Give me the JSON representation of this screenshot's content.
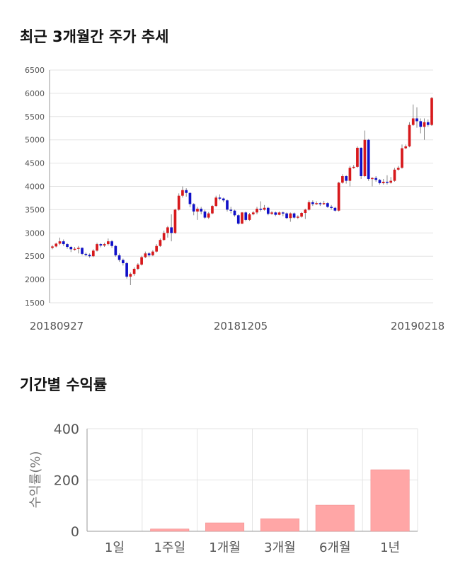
{
  "sections": {
    "price_title": "최근 3개월간 주가 추세",
    "returns_title": "기간별 수익률"
  },
  "colors": {
    "up": "#d7191c",
    "down": "#1010c8",
    "bar": "#ffa6a6",
    "grid": "#e3e3e3",
    "axis": "#999999"
  },
  "chart_data": [
    {
      "type": "candlestick",
      "title": "최근 3개월간 주가 추세",
      "ylim": [
        1500,
        6500
      ],
      "yticks": [
        1500,
        2000,
        2500,
        3000,
        3500,
        4000,
        4500,
        5000,
        5500,
        6000,
        6500
      ],
      "date_labels": [
        "20180927",
        "20181205",
        "20190218"
      ],
      "candles": [
        [
          2680,
          2710,
          2650,
          2740
        ],
        [
          2710,
          2770,
          2690,
          2790
        ],
        [
          2770,
          2820,
          2740,
          2900
        ],
        [
          2820,
          2760,
          2720,
          2860
        ],
        [
          2760,
          2700,
          2660,
          2780
        ],
        [
          2700,
          2650,
          2590,
          2720
        ],
        [
          2650,
          2660,
          2620,
          2700
        ],
        [
          2660,
          2680,
          2560,
          2720
        ],
        [
          2680,
          2550,
          2520,
          2690
        ],
        [
          2550,
          2530,
          2500,
          2580
        ],
        [
          2530,
          2500,
          2470,
          2560
        ],
        [
          2500,
          2620,
          2480,
          2650
        ],
        [
          2620,
          2760,
          2600,
          2790
        ],
        [
          2760,
          2730,
          2690,
          2780
        ],
        [
          2730,
          2760,
          2700,
          2790
        ],
        [
          2760,
          2820,
          2730,
          2880
        ],
        [
          2820,
          2720,
          2680,
          2850
        ],
        [
          2720,
          2520,
          2490,
          2740
        ],
        [
          2520,
          2420,
          2380,
          2560
        ],
        [
          2420,
          2350,
          2300,
          2450
        ],
        [
          2350,
          2060,
          2020,
          2380
        ],
        [
          2060,
          2120,
          1880,
          2150
        ],
        [
          2120,
          2230,
          2080,
          2260
        ],
        [
          2230,
          2320,
          2200,
          2350
        ],
        [
          2320,
          2480,
          2300,
          2510
        ],
        [
          2480,
          2560,
          2460,
          2600
        ],
        [
          2560,
          2520,
          2480,
          2590
        ],
        [
          2520,
          2600,
          2500,
          2630
        ],
        [
          2600,
          2720,
          2580,
          2760
        ],
        [
          2720,
          2850,
          2700,
          2880
        ],
        [
          2850,
          3000,
          2830,
          3050
        ],
        [
          3000,
          3120,
          2900,
          3150
        ],
        [
          3120,
          3000,
          2820,
          3400
        ],
        [
          3000,
          3500,
          2980,
          3520
        ],
        [
          3500,
          3800,
          3480,
          3850
        ],
        [
          3800,
          3920,
          3760,
          4000
        ],
        [
          3920,
          3860,
          3780,
          3960
        ],
        [
          3860,
          3620,
          3550,
          3870
        ],
        [
          3620,
          3460,
          3380,
          3640
        ],
        [
          3460,
          3520,
          3280,
          3560
        ],
        [
          3520,
          3460,
          3400,
          3560
        ],
        [
          3460,
          3330,
          3300,
          3500
        ],
        [
          3330,
          3420,
          3300,
          3450
        ],
        [
          3420,
          3580,
          3400,
          3600
        ],
        [
          3580,
          3760,
          3560,
          3800
        ],
        [
          3760,
          3740,
          3700,
          3830
        ],
        [
          3740,
          3700,
          3660,
          3760
        ],
        [
          3700,
          3500,
          3460,
          3720
        ],
        [
          3500,
          3480,
          3420,
          3560
        ],
        [
          3480,
          3380,
          3350,
          3500
        ],
        [
          3380,
          3200,
          3180,
          3400
        ],
        [
          3200,
          3440,
          3190,
          3450
        ],
        [
          3440,
          3280,
          3250,
          3460
        ],
        [
          3280,
          3400,
          3260,
          3430
        ],
        [
          3400,
          3440,
          3380,
          3470
        ],
        [
          3440,
          3520,
          3400,
          3560
        ],
        [
          3520,
          3500,
          3460,
          3680
        ],
        [
          3500,
          3540,
          3480,
          3600
        ],
        [
          3540,
          3410,
          3380,
          3560
        ],
        [
          3410,
          3440,
          3390,
          3470
        ],
        [
          3440,
          3390,
          3360,
          3460
        ],
        [
          3390,
          3440,
          3380,
          3460
        ],
        [
          3440,
          3420,
          3360,
          3460
        ],
        [
          3420,
          3320,
          3300,
          3440
        ],
        [
          3320,
          3420,
          3240,
          3440
        ],
        [
          3420,
          3330,
          3310,
          3440
        ],
        [
          3330,
          3350,
          3300,
          3380
        ],
        [
          3350,
          3430,
          3330,
          3450
        ],
        [
          3430,
          3500,
          3300,
          3520
        ],
        [
          3500,
          3660,
          3480,
          3700
        ],
        [
          3660,
          3620,
          3580,
          3700
        ],
        [
          3620,
          3640,
          3600,
          3680
        ],
        [
          3640,
          3620,
          3580,
          3660
        ],
        [
          3620,
          3640,
          3600,
          3690
        ],
        [
          3640,
          3560,
          3540,
          3660
        ],
        [
          3560,
          3540,
          3500,
          3600
        ],
        [
          3540,
          3480,
          3460,
          3560
        ],
        [
          3480,
          4080,
          3460,
          4100
        ],
        [
          4080,
          4220,
          4060,
          4260
        ],
        [
          4220,
          4120,
          4060,
          4240
        ],
        [
          4120,
          4400,
          4000,
          4440
        ],
        [
          4400,
          4420,
          4380,
          4460
        ],
        [
          4420,
          4830,
          4400,
          4860
        ],
        [
          4830,
          4220,
          4160,
          4840
        ],
        [
          4220,
          5000,
          4200,
          5200
        ],
        [
          5000,
          4160,
          4120,
          5020
        ],
        [
          4160,
          4180,
          4000,
          4200
        ],
        [
          4180,
          4140,
          4100,
          4220
        ],
        [
          4140,
          4070,
          4040,
          4160
        ],
        [
          4070,
          4100,
          4040,
          4160
        ],
        [
          4100,
          4080,
          4040,
          4240
        ],
        [
          4080,
          4120,
          4060,
          4200
        ],
        [
          4120,
          4360,
          4100,
          4400
        ],
        [
          4360,
          4400,
          4340,
          4440
        ],
        [
          4400,
          4820,
          4380,
          4900
        ],
        [
          4820,
          4860,
          4800,
          4900
        ],
        [
          4860,
          5320,
          4840,
          5380
        ],
        [
          5320,
          5460,
          5300,
          5760
        ],
        [
          5460,
          5400,
          5260,
          5700
        ],
        [
          5400,
          5280,
          5140,
          5460
        ],
        [
          5280,
          5380,
          5000,
          5460
        ],
        [
          5380,
          5320,
          5280,
          5440
        ],
        [
          5320,
          5900,
          5300,
          5920
        ]
      ]
    },
    {
      "type": "bar",
      "title": "기간별 수익률",
      "ylabel": "수익률(%)",
      "ylim": [
        0,
        400
      ],
      "yticks": [
        0,
        200,
        400
      ],
      "categories": [
        "1일",
        "1주일",
        "1개월",
        "3개월",
        "6개월",
        "1년"
      ],
      "values": [
        0,
        9,
        33,
        49,
        102,
        240
      ]
    }
  ]
}
